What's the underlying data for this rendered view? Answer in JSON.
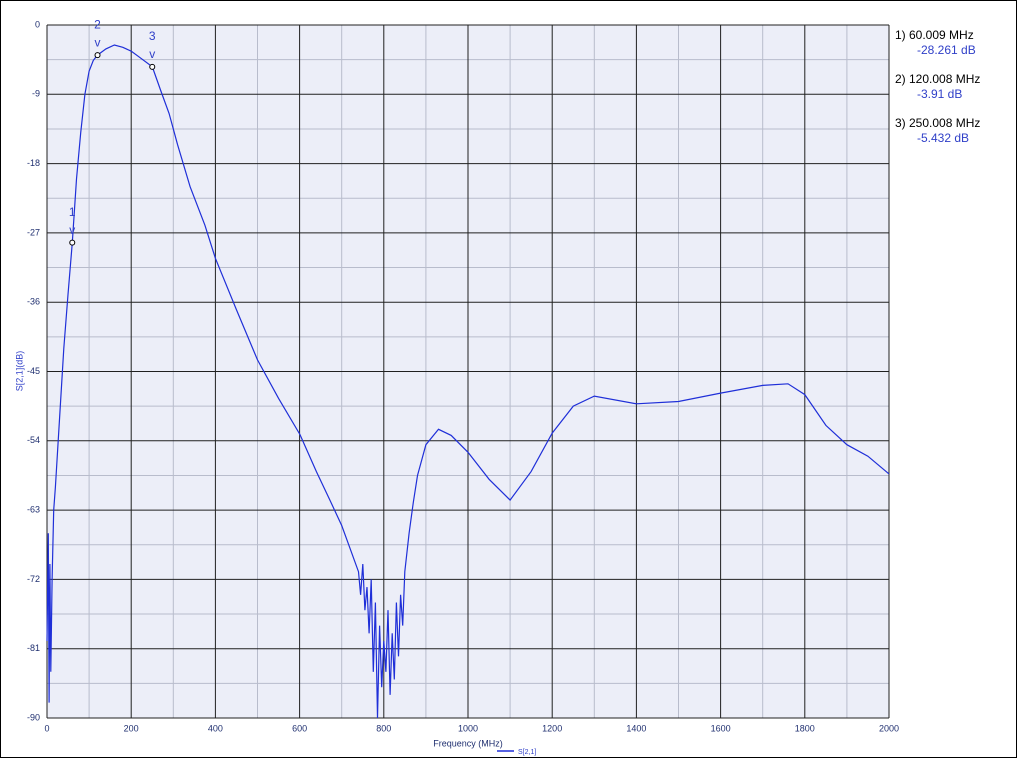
{
  "chart_data": {
    "type": "line",
    "xlabel": "Frequency (MHz)",
    "ylabel": "S[2,1](dB)",
    "xlim": [
      0,
      2000
    ],
    "ylim": [
      -90,
      0
    ],
    "xticks": [
      0,
      200,
      400,
      600,
      800,
      1000,
      1200,
      1400,
      1600,
      1800,
      2000
    ],
    "yticks": [
      0,
      -9,
      -18,
      -27,
      -36,
      -45,
      -54,
      -63,
      -72,
      -81,
      -90
    ],
    "grid": true,
    "series": [
      {
        "name": "S[2,1]",
        "color": "#1f2fd8",
        "x": [
          0,
          3,
          5,
          7,
          9,
          12,
          16,
          20,
          30,
          40,
          50,
          60,
          70,
          80,
          90,
          100,
          110,
          120,
          140,
          160,
          180,
          200,
          220,
          250,
          270,
          290,
          310,
          340,
          375,
          400,
          450,
          500,
          550,
          601,
          640,
          672,
          700,
          720,
          740,
          745,
          750,
          755,
          760,
          765,
          770,
          775,
          780,
          785,
          790,
          795,
          800,
          805,
          810,
          815,
          820,
          825,
          830,
          835,
          840,
          845,
          850,
          860,
          870,
          880,
          900,
          930,
          960,
          1000,
          1050,
          1100,
          1150,
          1200,
          1250,
          1300,
          1400,
          1500,
          1600,
          1700,
          1760,
          1800,
          1850,
          1900,
          1950,
          2000
        ],
        "values": [
          -80,
          -66,
          -88,
          -70,
          -84,
          -72,
          -63,
          -60,
          -51,
          -42,
          -35,
          -28.261,
          -20,
          -14,
          -9,
          -6,
          -4.6,
          -3.91,
          -3.1,
          -2.6,
          -2.9,
          -3.4,
          -4.2,
          -5.432,
          -8.5,
          -11.5,
          -15.5,
          -21,
          -26,
          -30.3,
          -37,
          -43.5,
          -48.5,
          -53.2,
          -58,
          -61.7,
          -65,
          -68,
          -71,
          -74,
          -70,
          -76,
          -73,
          -79,
          -72,
          -84,
          -75,
          -90,
          -78,
          -86,
          -80,
          -84,
          -76,
          -87,
          -79,
          -85,
          -75,
          -82,
          -74,
          -78,
          -71,
          -66,
          -62,
          -58.5,
          -54.5,
          -52.5,
          -53.3,
          -55.5,
          -59,
          -61.7,
          -58,
          -53,
          -49.5,
          -48.2,
          -49.2,
          -48.9,
          -47.8,
          -46.8,
          -46.6,
          -48,
          -52,
          -54.5,
          -56,
          -58.3
        ]
      }
    ],
    "markers": [
      {
        "number": "1",
        "symbol": "v",
        "x": 60.009,
        "value": -28.261,
        "freq_label": "1) 60.009 MHz",
        "value_label": "-28.261 dB"
      },
      {
        "number": "2",
        "symbol": "v",
        "x": 120.008,
        "value": -3.91,
        "freq_label": "2) 120.008 MHz",
        "value_label": "-3.91 dB"
      },
      {
        "number": "3",
        "symbol": "v",
        "x": 250.008,
        "value": -5.432,
        "freq_label": "3) 250.008 MHz",
        "value_label": "-5.432 dB"
      }
    ]
  }
}
